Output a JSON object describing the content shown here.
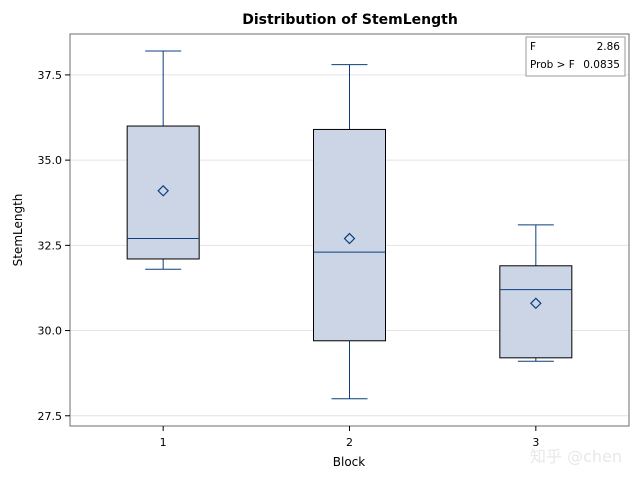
{
  "chart_data": {
    "type": "box",
    "title": "Distribution of StemLength",
    "xlabel": "Block",
    "ylabel": "StemLength",
    "categories": [
      "1",
      "2",
      "3"
    ],
    "ylim": [
      27.2,
      38.7
    ],
    "yticks": [
      "27.5",
      "30.0",
      "32.5",
      "35.0",
      "37.5"
    ],
    "grid": true,
    "boxes": [
      {
        "category": "1",
        "min": 31.8,
        "q1": 32.1,
        "median": 32.7,
        "q3": 36.0,
        "max": 38.2,
        "mean": 34.1
      },
      {
        "category": "2",
        "min": 28.0,
        "q1": 29.7,
        "median": 32.3,
        "q3": 35.9,
        "max": 37.8,
        "mean": 32.7
      },
      {
        "category": "3",
        "min": 29.1,
        "q1": 29.2,
        "median": 31.2,
        "q3": 31.9,
        "max": 33.1,
        "mean": 30.8
      }
    ],
    "stats": [
      {
        "label": "F",
        "value": "2.86"
      },
      {
        "label": "Prob > F",
        "value": "0.0835"
      }
    ],
    "colors": {
      "box_fill": "#cbd5e5",
      "line": "#0b3f7f",
      "border": "#6e6e6e",
      "grid": "#e4e4e4"
    }
  },
  "watermark": "知乎 @chen"
}
